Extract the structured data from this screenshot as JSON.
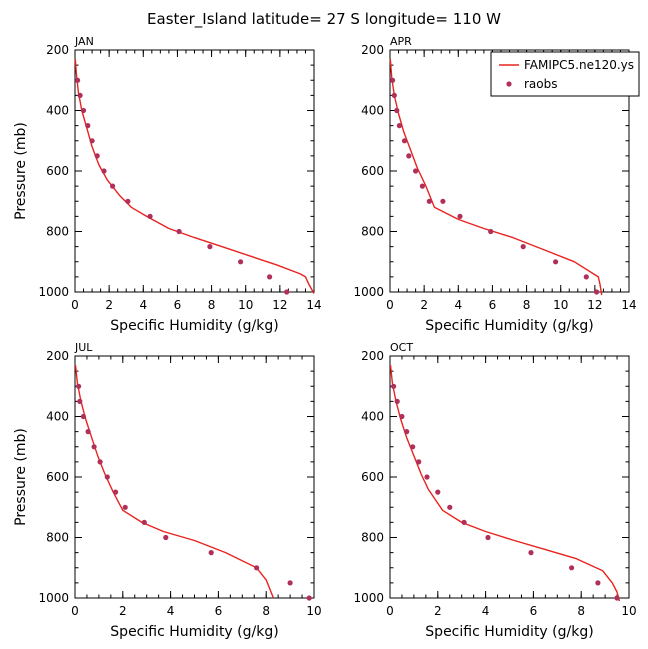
{
  "figure": {
    "title": "Easter_Island   latitude= 27 S longitude= 110 W"
  },
  "colors": {
    "model_line": "#e8231f",
    "obs_marker": "#b0305a",
    "axis": "#000000"
  },
  "chart_data": [
    {
      "type": "line",
      "panel_label": "JAN",
      "xlabel": "Specific Humidity (g/kg)",
      "ylabel": "Pressure (mb)",
      "xlim": [
        0,
        14
      ],
      "ylim": [
        1000,
        200
      ],
      "y_inverted": true,
      "xticks": [
        0,
        2,
        4,
        6,
        8,
        10,
        12,
        14
      ],
      "yticks": [
        200,
        400,
        600,
        800,
        1000
      ],
      "series": [
        {
          "name": "FAMIPC5.ne120.ys",
          "kind": "line",
          "x": [
            0.02,
            0.08,
            0.2,
            0.4,
            0.7,
            1.0,
            1.4,
            1.9,
            2.6,
            3.3,
            4.2,
            5.5,
            7.0,
            8.6,
            10.2,
            11.8,
            13.2,
            13.5,
            13.7,
            14.0
          ],
          "y": [
            230,
            280,
            340,
            400,
            460,
            520,
            580,
            630,
            680,
            720,
            750,
            790,
            820,
            850,
            880,
            910,
            940,
            950,
            975,
            1005
          ]
        },
        {
          "name": "raobs",
          "kind": "scatter",
          "x": [
            0.15,
            0.3,
            0.5,
            0.75,
            1.0,
            1.3,
            1.7,
            2.2,
            3.1,
            4.4,
            6.1,
            7.9,
            9.7,
            11.4,
            12.4
          ],
          "y": [
            300,
            350,
            400,
            450,
            500,
            550,
            600,
            650,
            700,
            750,
            800,
            850,
            900,
            950,
            1000
          ]
        }
      ]
    },
    {
      "type": "line",
      "panel_label": "APR",
      "xlabel": "Specific Humidity (g/kg)",
      "ylabel": "",
      "xlim": [
        0,
        14
      ],
      "ylim": [
        1000,
        200
      ],
      "y_inverted": true,
      "xticks": [
        0,
        2,
        4,
        6,
        8,
        10,
        12,
        14
      ],
      "yticks": [
        200,
        400,
        600,
        800,
        1000
      ],
      "legend": {
        "placement": "top-right",
        "entries": [
          "FAMIPC5.ne120.ys",
          "raobs"
        ]
      },
      "series": [
        {
          "name": "FAMIPC5.ne120.ys",
          "kind": "line",
          "x": [
            0.02,
            0.1,
            0.25,
            0.5,
            0.8,
            1.2,
            1.6,
            2.1,
            2.6,
            4.0,
            5.5,
            7.2,
            9.0,
            10.8,
            12.2,
            12.3,
            12.4
          ],
          "y": [
            230,
            290,
            350,
            410,
            470,
            530,
            590,
            650,
            720,
            760,
            790,
            820,
            860,
            900,
            950,
            975,
            1010
          ]
        },
        {
          "name": "raobs",
          "kind": "scatter",
          "x": [
            0.15,
            0.25,
            0.4,
            0.55,
            0.85,
            1.1,
            1.5,
            1.9,
            2.3,
            3.1,
            4.1,
            5.9,
            7.8,
            9.7,
            11.5,
            12.1
          ],
          "y": [
            300,
            350,
            400,
            450,
            500,
            550,
            600,
            650,
            700,
            700,
            750,
            800,
            850,
            900,
            950,
            1000
          ]
        }
      ]
    },
    {
      "type": "line",
      "panel_label": "JUL",
      "xlabel": "Specific Humidity (g/kg)",
      "ylabel": "Pressure (mb)",
      "xlim": [
        0,
        10
      ],
      "ylim": [
        1000,
        200
      ],
      "y_inverted": true,
      "xticks": [
        0,
        2,
        4,
        6,
        8,
        10
      ],
      "yticks": [
        200,
        400,
        600,
        800,
        1000
      ],
      "series": [
        {
          "name": "FAMIPC5.ne120.ys",
          "kind": "line",
          "x": [
            0.02,
            0.1,
            0.25,
            0.45,
            0.7,
            0.95,
            1.25,
            1.6,
            2.0,
            2.8,
            3.7,
            5.0,
            6.3,
            7.6,
            8.0,
            8.3
          ],
          "y": [
            230,
            290,
            350,
            410,
            470,
            530,
            590,
            650,
            710,
            750,
            780,
            810,
            850,
            900,
            940,
            1000
          ]
        },
        {
          "name": "raobs",
          "kind": "scatter",
          "x": [
            0.15,
            0.2,
            0.35,
            0.55,
            0.8,
            1.05,
            1.35,
            1.7,
            2.1,
            2.9,
            3.8,
            5.7,
            7.6,
            9.0,
            9.8
          ],
          "y": [
            300,
            350,
            400,
            450,
            500,
            550,
            600,
            650,
            700,
            750,
            800,
            850,
            900,
            950,
            1000
          ]
        }
      ]
    },
    {
      "type": "line",
      "panel_label": "OCT",
      "xlabel": "Specific Humidity (g/kg)",
      "ylabel": "",
      "xlim": [
        0,
        10
      ],
      "ylim": [
        1000,
        200
      ],
      "y_inverted": true,
      "xticks": [
        0,
        2,
        4,
        6,
        8,
        10
      ],
      "yticks": [
        200,
        400,
        600,
        800,
        1000
      ],
      "series": [
        {
          "name": "FAMIPC5.ne120.ys",
          "kind": "line",
          "x": [
            0.02,
            0.1,
            0.25,
            0.45,
            0.7,
            1.0,
            1.3,
            1.6,
            2.2,
            3.0,
            4.0,
            5.2,
            6.5,
            7.8,
            8.9,
            9.3,
            9.5,
            9.6
          ],
          "y": [
            230,
            290,
            350,
            410,
            470,
            530,
            590,
            640,
            710,
            750,
            780,
            810,
            840,
            870,
            910,
            950,
            980,
            1010
          ]
        },
        {
          "name": "raobs",
          "kind": "scatter",
          "x": [
            0.15,
            0.3,
            0.5,
            0.7,
            0.95,
            1.2,
            1.55,
            2.0,
            2.5,
            3.1,
            4.1,
            5.9,
            7.6,
            8.7,
            9.5
          ],
          "y": [
            300,
            350,
            400,
            450,
            500,
            550,
            600,
            650,
            700,
            750,
            800,
            850,
            900,
            950,
            1000
          ]
        }
      ]
    }
  ]
}
